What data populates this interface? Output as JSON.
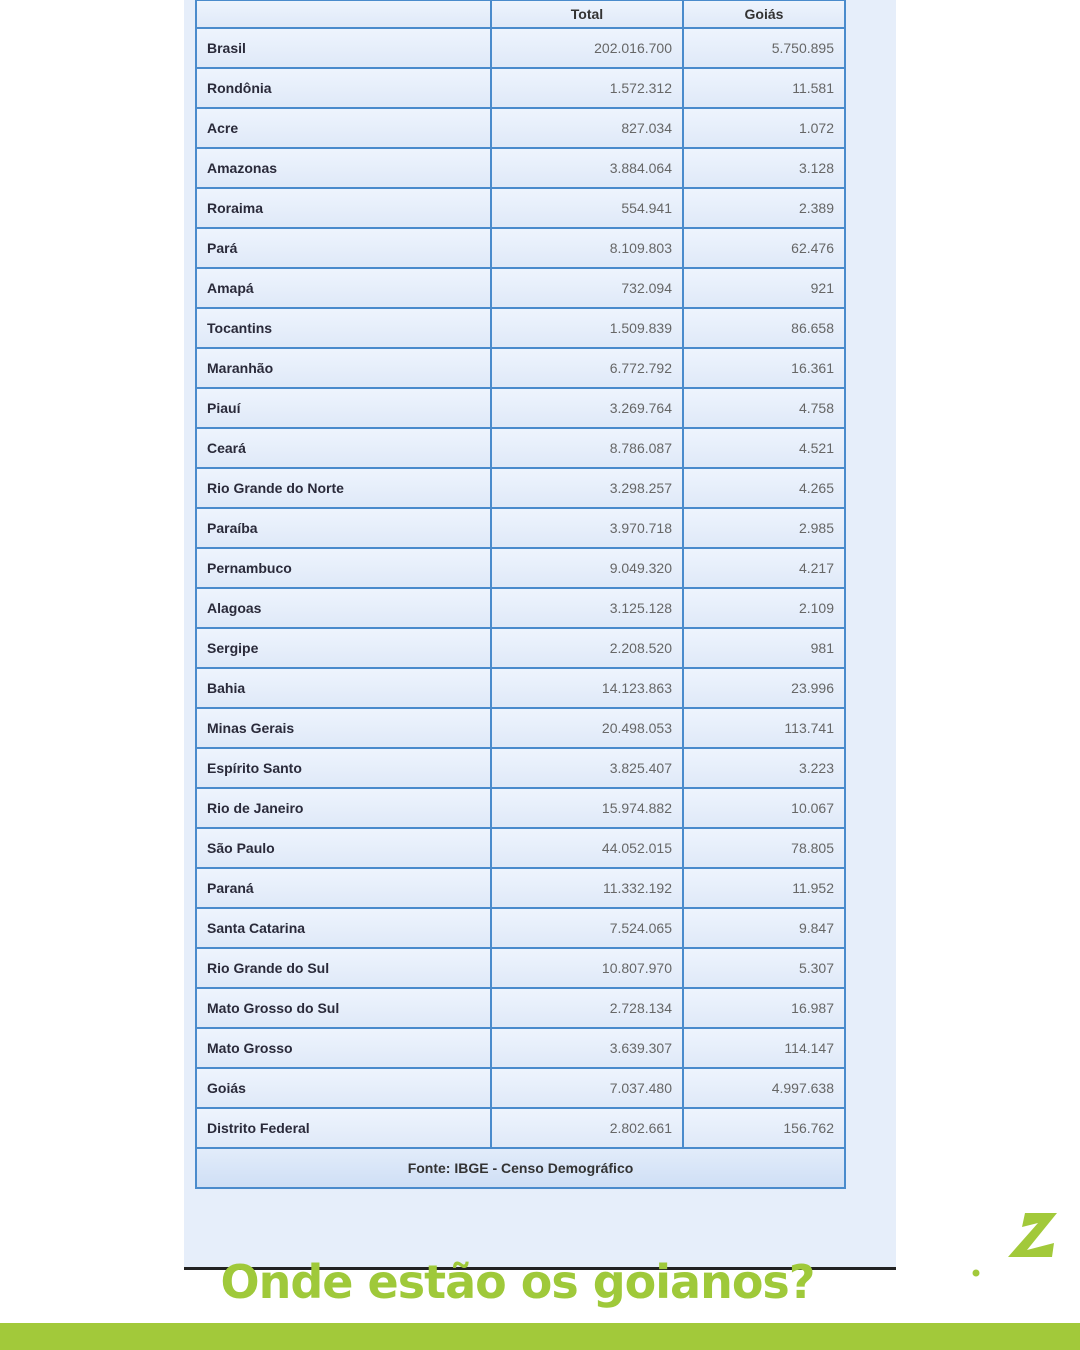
{
  "table": {
    "headers": [
      "",
      "Total",
      "Goiás"
    ],
    "rows": [
      [
        "Brasil",
        "202.016.700",
        "5.750.895"
      ],
      [
        "Rondônia",
        "1.572.312",
        "11.581"
      ],
      [
        "Acre",
        "827.034",
        "1.072"
      ],
      [
        "Amazonas",
        "3.884.064",
        "3.128"
      ],
      [
        "Roraima",
        "554.941",
        "2.389"
      ],
      [
        "Pará",
        "8.109.803",
        "62.476"
      ],
      [
        "Amapá",
        "732.094",
        "921"
      ],
      [
        "Tocantins",
        "1.509.839",
        "86.658"
      ],
      [
        "Maranhão",
        "6.772.792",
        "16.361"
      ],
      [
        "Piauí",
        "3.269.764",
        "4.758"
      ],
      [
        "Ceará",
        "8.786.087",
        "4.521"
      ],
      [
        "Rio Grande do Norte",
        "3.298.257",
        "4.265"
      ],
      [
        "Paraíba",
        "3.970.718",
        "2.985"
      ],
      [
        "Pernambuco",
        "9.049.320",
        "4.217"
      ],
      [
        "Alagoas",
        "3.125.128",
        "2.109"
      ],
      [
        "Sergipe",
        "2.208.520",
        "981"
      ],
      [
        "Bahia",
        "14.123.863",
        "23.996"
      ],
      [
        "Minas Gerais",
        "20.498.053",
        "113.741"
      ],
      [
        "Espírito Santo",
        "3.825.407",
        "3.223"
      ],
      [
        "Rio de Janeiro",
        "15.974.882",
        "10.067"
      ],
      [
        "São Paulo",
        "44.052.015",
        "78.805"
      ],
      [
        "Paraná",
        "11.332.192",
        "11.952"
      ],
      [
        "Santa Catarina",
        "7.524.065",
        "9.847"
      ],
      [
        "Rio Grande do Sul",
        "10.807.970",
        "5.307"
      ],
      [
        "Mato Grosso do Sul",
        "2.728.134",
        "16.987"
      ],
      [
        "Mato Grosso",
        "3.639.307",
        "114.147"
      ],
      [
        "Goiás",
        "7.037.480",
        "4.997.638"
      ],
      [
        "Distrito Federal",
        "2.802.661",
        "156.762"
      ]
    ],
    "source": "Fonte: IBGE - Censo Demográfico"
  },
  "title": "Onde estão os goianos?",
  "logo": {
    "text": "folhaZ .com"
  },
  "colors": {
    "accent": "#a2c93a",
    "table_border": "#4a8bcc",
    "table_bg": "#e6eefa"
  }
}
